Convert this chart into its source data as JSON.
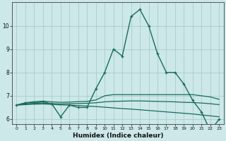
{
  "xlabel": "Humidex (Indice chaleur)",
  "background_color": "#cce8e8",
  "grid_color": "#aacccc",
  "line_color": "#1a6b5a",
  "x_values": [
    0,
    1,
    2,
    3,
    4,
    5,
    6,
    7,
    8,
    9,
    10,
    11,
    12,
    13,
    14,
    15,
    16,
    17,
    18,
    19,
    20,
    21,
    22,
    23
  ],
  "humidex_main": [
    6.6,
    6.7,
    6.7,
    6.75,
    6.65,
    6.1,
    6.6,
    6.5,
    6.5,
    7.3,
    8.0,
    9.0,
    8.7,
    10.4,
    10.7,
    10.0,
    8.8,
    8.0,
    8.0,
    7.5,
    6.8,
    6.3,
    5.5,
    6.0
  ],
  "line_flat1": [
    6.6,
    6.7,
    6.75,
    6.77,
    6.74,
    6.72,
    6.73,
    6.75,
    6.76,
    6.82,
    7.0,
    7.05,
    7.05,
    7.05,
    7.05,
    7.05,
    7.05,
    7.05,
    7.05,
    7.05,
    7.05,
    7.0,
    6.95,
    6.85
  ],
  "line_flat2": [
    6.6,
    6.65,
    6.68,
    6.69,
    6.67,
    6.65,
    6.66,
    6.67,
    6.68,
    6.7,
    6.74,
    6.76,
    6.77,
    6.78,
    6.78,
    6.77,
    6.76,
    6.75,
    6.74,
    6.72,
    6.71,
    6.69,
    6.66,
    6.62
  ],
  "line_flat3": [
    6.6,
    6.62,
    6.64,
    6.65,
    6.63,
    6.61,
    6.6,
    6.58,
    6.56,
    6.54,
    6.51,
    6.48,
    6.45,
    6.43,
    6.4,
    6.37,
    6.34,
    6.31,
    6.28,
    6.25,
    6.22,
    6.18,
    6.14,
    6.1
  ],
  "ylim": [
    5.8,
    11.0
  ],
  "yticks": [
    6,
    7,
    8,
    9,
    10
  ],
  "figsize": [
    3.2,
    2.0
  ],
  "dpi": 100
}
